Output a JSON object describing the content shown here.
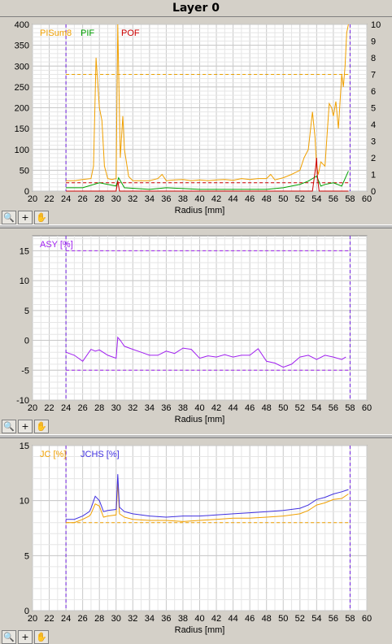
{
  "window": {
    "title": "Layer 0"
  },
  "toolbar": {
    "zoom_icon": "magnifier-icon",
    "pan_icon": "hand-icon",
    "cross_icon": "crosshair-icon"
  },
  "chart_data": [
    {
      "type": "line",
      "xlabel": "Radius [mm]",
      "xlim": [
        20,
        60
      ],
      "xticks": [
        20,
        22,
        24,
        26,
        28,
        30,
        32,
        34,
        36,
        38,
        40,
        42,
        44,
        46,
        48,
        50,
        52,
        54,
        56,
        58,
        60
      ],
      "ylim": [
        0,
        400
      ],
      "yticks": [
        0,
        50,
        100,
        150,
        200,
        250,
        300,
        350,
        400
      ],
      "y2lim": [
        0,
        10
      ],
      "y2ticks": [
        0,
        1,
        2,
        3,
        4,
        5,
        6,
        7,
        8,
        9,
        10
      ],
      "grid": true,
      "legend": "top-left",
      "vlines": [
        24,
        58
      ],
      "hlines": [
        {
          "y": 280,
          "color": "#e8a000"
        },
        {
          "y": 0.5,
          "axis": "y2",
          "color": "#cc0000"
        }
      ],
      "series": [
        {
          "name": "PISum8",
          "color": "#f0a000",
          "axis": "y",
          "x": [
            24,
            25,
            26,
            27,
            27.3,
            27.6,
            28,
            28.3,
            28.6,
            29,
            29.5,
            30,
            30.2,
            30.5,
            30.8,
            31,
            31.5,
            32,
            33,
            34,
            35,
            35.5,
            36,
            37,
            38,
            39,
            40,
            41,
            42,
            43,
            44,
            45,
            46,
            47,
            48,
            48.5,
            49,
            50,
            51,
            52,
            52.5,
            53,
            53.5,
            53.8,
            54,
            54.2,
            54.5,
            55,
            55.3,
            55.5,
            55.8,
            56,
            56.3,
            56.6,
            57,
            57.2,
            57.4,
            57.6,
            57.8
          ],
          "values": [
            25,
            25,
            28,
            30,
            60,
            320,
            200,
            170,
            60,
            30,
            28,
            30,
            400,
            80,
            180,
            100,
            35,
            25,
            25,
            25,
            30,
            40,
            25,
            27,
            28,
            25,
            27,
            25,
            27,
            28,
            26,
            30,
            28,
            30,
            30,
            40,
            27,
            32,
            40,
            50,
            80,
            100,
            190,
            130,
            60,
            40,
            70,
            60,
            150,
            210,
            200,
            180,
            215,
            150,
            280,
            250,
            300,
            380,
            400
          ]
        },
        {
          "name": "PIF",
          "color": "#00a000",
          "axis": "y2",
          "x": [
            24,
            26,
            28,
            30,
            30.3,
            31,
            34,
            36,
            40,
            44,
            48,
            50,
            52,
            53,
            54,
            54.5,
            55,
            56,
            57,
            57.8
          ],
          "values": [
            0.2,
            0.2,
            0.5,
            0.3,
            0.8,
            0.2,
            0.1,
            0.2,
            0.1,
            0.1,
            0.1,
            0.2,
            0.4,
            0.6,
            0.9,
            0.3,
            0.4,
            0.5,
            0.3,
            1.2
          ]
        },
        {
          "name": "POF",
          "color": "#cc0000",
          "axis": "y2",
          "x": [
            24,
            28,
            30,
            30.2,
            30.4,
            34,
            40,
            46,
            50,
            53.5,
            53.9,
            54,
            54.1,
            54.3,
            56,
            57.8
          ],
          "values": [
            0,
            0,
            0,
            0.6,
            0,
            0,
            0,
            0,
            0,
            0,
            1.5,
            2,
            0.8,
            0,
            0,
            0
          ]
        }
      ]
    },
    {
      "type": "line",
      "xlabel": "Radius [mm]",
      "xlim": [
        20,
        60
      ],
      "xticks": [
        20,
        22,
        24,
        26,
        28,
        30,
        32,
        34,
        36,
        38,
        40,
        42,
        44,
        46,
        48,
        50,
        52,
        54,
        56,
        58,
        60
      ],
      "ylim": [
        -10,
        17.5
      ],
      "yticks": [
        -10,
        -5,
        0,
        5,
        10,
        15
      ],
      "grid": true,
      "legend": "top-left",
      "vlines": [
        24,
        58
      ],
      "hlines": [
        {
          "y": 15,
          "color": "#a020f0"
        },
        {
          "y": -5,
          "color": "#a020f0"
        }
      ],
      "series": [
        {
          "name": "ASY [%]",
          "color": "#a020f0",
          "x": [
            24,
            25,
            26,
            27,
            27.5,
            28,
            29,
            30,
            30.2,
            30.5,
            31,
            32,
            33,
            34,
            35,
            36,
            37,
            38,
            39,
            40,
            41,
            42,
            43,
            44,
            45,
            46,
            47,
            48,
            49,
            50,
            51,
            52,
            53,
            54,
            55,
            56,
            57,
            57.5
          ],
          "values": [
            -2,
            -2.5,
            -3.5,
            -1.5,
            -1.8,
            -1.6,
            -2.5,
            -3,
            0.5,
            0,
            -1,
            -1.5,
            -2,
            -2.5,
            -2.5,
            -1.8,
            -2.2,
            -1.3,
            -1.5,
            -3,
            -2.6,
            -2.8,
            -2.4,
            -2.8,
            -2.5,
            -2.5,
            -1.4,
            -3.5,
            -3.8,
            -4.5,
            -4,
            -2.8,
            -2.5,
            -3.2,
            -2.5,
            -2.8,
            -3.2,
            -2.8
          ]
        }
      ]
    },
    {
      "type": "line",
      "xlabel": "Radius [mm]",
      "xlim": [
        20,
        60
      ],
      "xticks": [
        20,
        22,
        24,
        26,
        28,
        30,
        32,
        34,
        36,
        38,
        40,
        42,
        44,
        46,
        48,
        50,
        52,
        54,
        56,
        58,
        60
      ],
      "ylim": [
        0,
        15
      ],
      "yticks": [
        0,
        5,
        10,
        15
      ],
      "grid": true,
      "legend": "top-left",
      "vlines": [
        24,
        58
      ],
      "hlines": [
        {
          "y": 8,
          "color": "#f0a000"
        }
      ],
      "series": [
        {
          "name": "JC [%]",
          "color": "#f0a000",
          "x": [
            24,
            25,
            26,
            26.8,
            27,
            27.5,
            28,
            28.5,
            29,
            30,
            30.2,
            30.4,
            31,
            32,
            34,
            36,
            38,
            40,
            42,
            44,
            46,
            48,
            50,
            52,
            53,
            54,
            55,
            56,
            57,
            57.8
          ],
          "values": [
            8,
            8,
            8.3,
            8.6,
            8.8,
            9.7,
            9.5,
            8.5,
            8.6,
            8.7,
            11.7,
            8.8,
            8.5,
            8.3,
            8.2,
            8.2,
            8.1,
            8.2,
            8.3,
            8.4,
            8.4,
            8.5,
            8.6,
            8.8,
            9.1,
            9.6,
            9.8,
            10.1,
            10.2,
            10.6
          ]
        },
        {
          "name": "JCHS [%]",
          "color": "#4030e0",
          "x": [
            24,
            25,
            26,
            26.8,
            27,
            27.5,
            28,
            28.5,
            29,
            30,
            30.2,
            30.4,
            31,
            32,
            34,
            36,
            38,
            40,
            42,
            44,
            46,
            48,
            50,
            52,
            53,
            54,
            55,
            56,
            57,
            57.8
          ],
          "values": [
            8.3,
            8.3,
            8.6,
            9,
            9.3,
            10.4,
            10,
            9,
            9.1,
            9.2,
            12.4,
            9.4,
            9,
            8.8,
            8.6,
            8.5,
            8.6,
            8.6,
            8.7,
            8.8,
            8.9,
            9,
            9.1,
            9.3,
            9.6,
            10.1,
            10.3,
            10.6,
            10.8,
            11
          ]
        }
      ]
    }
  ]
}
